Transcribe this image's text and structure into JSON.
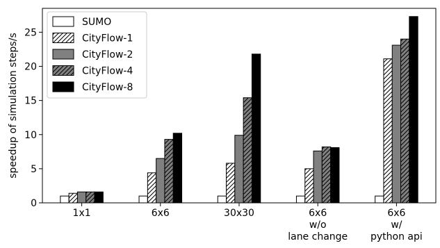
{
  "chart_data": {
    "type": "bar",
    "title": "",
    "xlabel": "",
    "ylabel": "speedup of simulation steps/s",
    "ylim": [
      0,
      28.5
    ],
    "yticks": [
      0,
      5,
      10,
      15,
      20,
      25
    ],
    "categories": [
      [
        "1x1"
      ],
      [
        "6x6"
      ],
      [
        "30x30"
      ],
      [
        "6x6",
        "w/o",
        "lane change"
      ],
      [
        "6x6",
        "w/",
        "python api"
      ]
    ],
    "series": [
      {
        "name": "SUMO",
        "fill": "#ffffff",
        "hatch": false,
        "values": [
          1.0,
          1.0,
          1.0,
          1.0,
          1.0
        ]
      },
      {
        "name": "CityFlow-1",
        "fill": "#ffffff",
        "hatch": true,
        "values": [
          1.4,
          4.4,
          5.8,
          5.0,
          21.1
        ]
      },
      {
        "name": "CityFlow-2",
        "fill": "#808080",
        "hatch": false,
        "values": [
          1.6,
          6.5,
          9.9,
          7.6,
          23.1
        ]
      },
      {
        "name": "CityFlow-4",
        "fill": "#808080",
        "hatch": true,
        "values": [
          1.6,
          9.3,
          15.4,
          8.2,
          24.0
        ]
      },
      {
        "name": "CityFlow-8",
        "fill": "#000000",
        "hatch": false,
        "values": [
          1.6,
          10.2,
          21.8,
          8.1,
          27.3
        ]
      }
    ],
    "legend_position": "top-left",
    "grid": false
  }
}
